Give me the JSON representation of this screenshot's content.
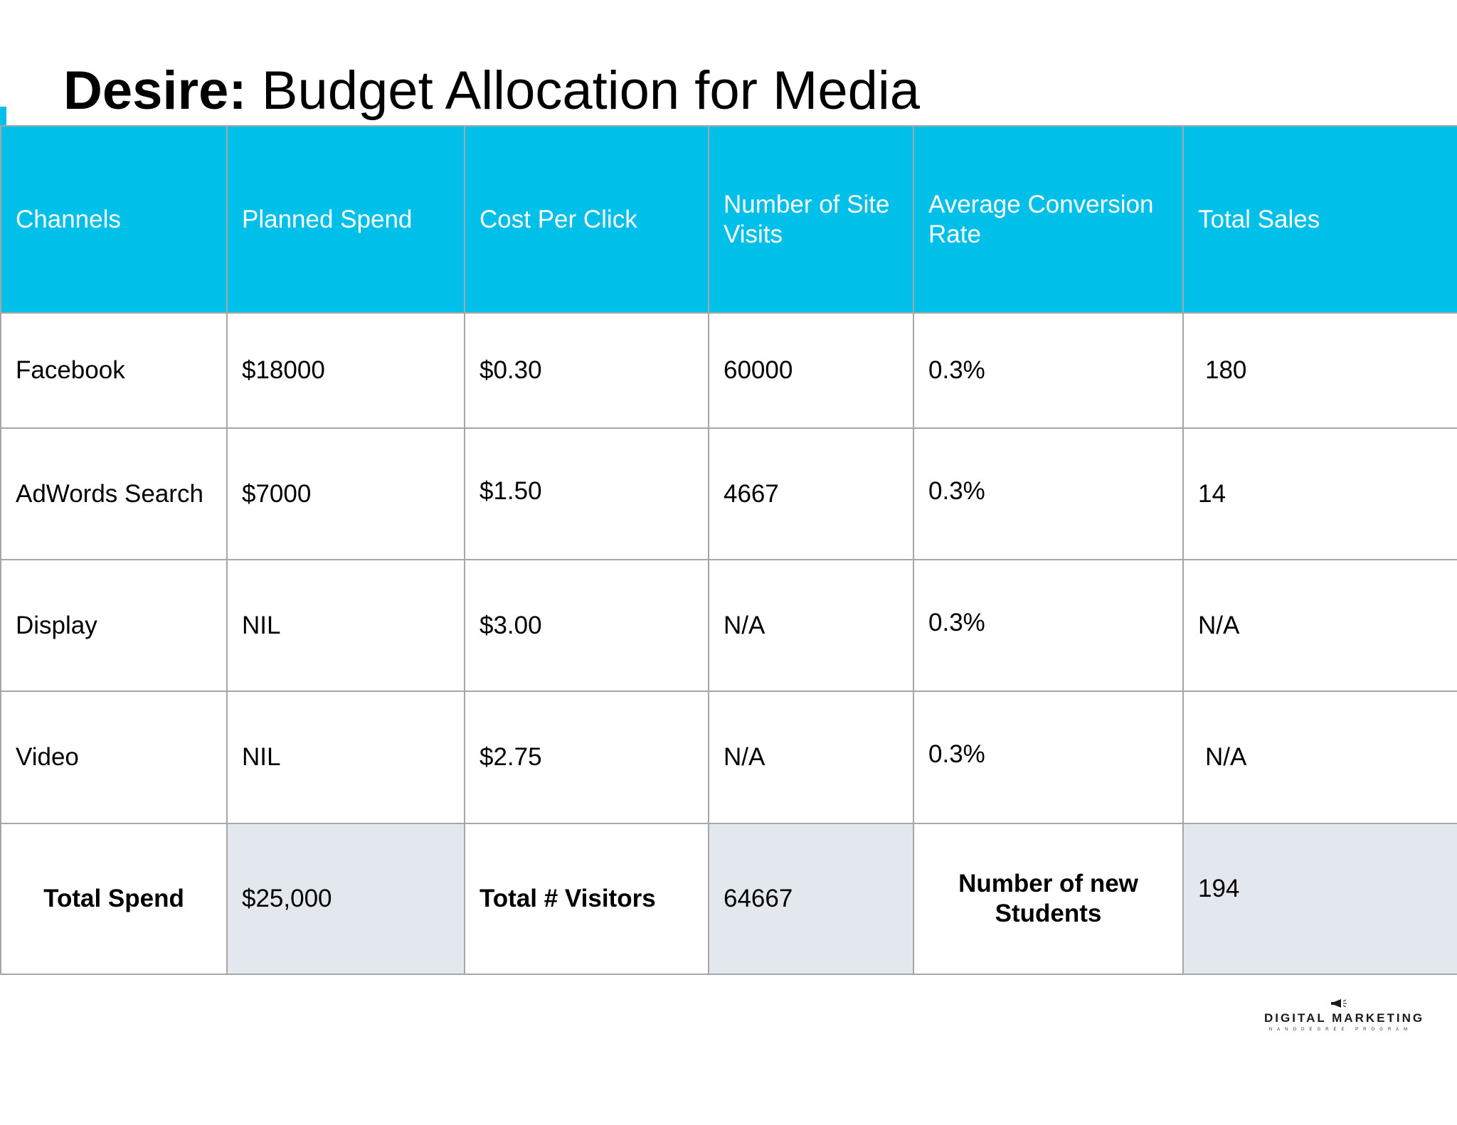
{
  "title": {
    "strong": "Desire:",
    "rest": " Budget Allocation for Media"
  },
  "colors": {
    "header_bg": "#00BFE8",
    "header_text": "#FFFFFF",
    "total_cell_bg": "#E3E7EE",
    "grid_line": "#A6A6A6"
  },
  "table": {
    "headers": [
      "Channels",
      "Planned Spend",
      "Cost Per Click",
      "Number of Site Visits",
      "Average Conversion Rate",
      "Total Sales"
    ],
    "rows": [
      [
        "Facebook",
        "$18000",
        "$0.30",
        "60000",
        "0.3%",
        "180"
      ],
      [
        "AdWords Search",
        "$7000",
        "$1.50",
        "4667",
        "0.3%",
        "14"
      ],
      [
        "Display",
        "NIL",
        "$3.00",
        "N/A",
        "0.3%",
        "N/A"
      ],
      [
        "Video",
        "NIL",
        "$2.75",
        "N/A",
        "0.3%",
        "N/A"
      ]
    ],
    "totals": {
      "spend_label": "Total Spend",
      "spend_value": "$25,000",
      "visitors_label": "Total # Visitors",
      "visitors_value": "64667",
      "students_label": "Number of new Students",
      "students_value": "194"
    }
  },
  "logo": {
    "icon": "megaphone-icon",
    "main": "DIGITAL MARKETING",
    "sub": "NANODEGREE PROGRAM"
  }
}
